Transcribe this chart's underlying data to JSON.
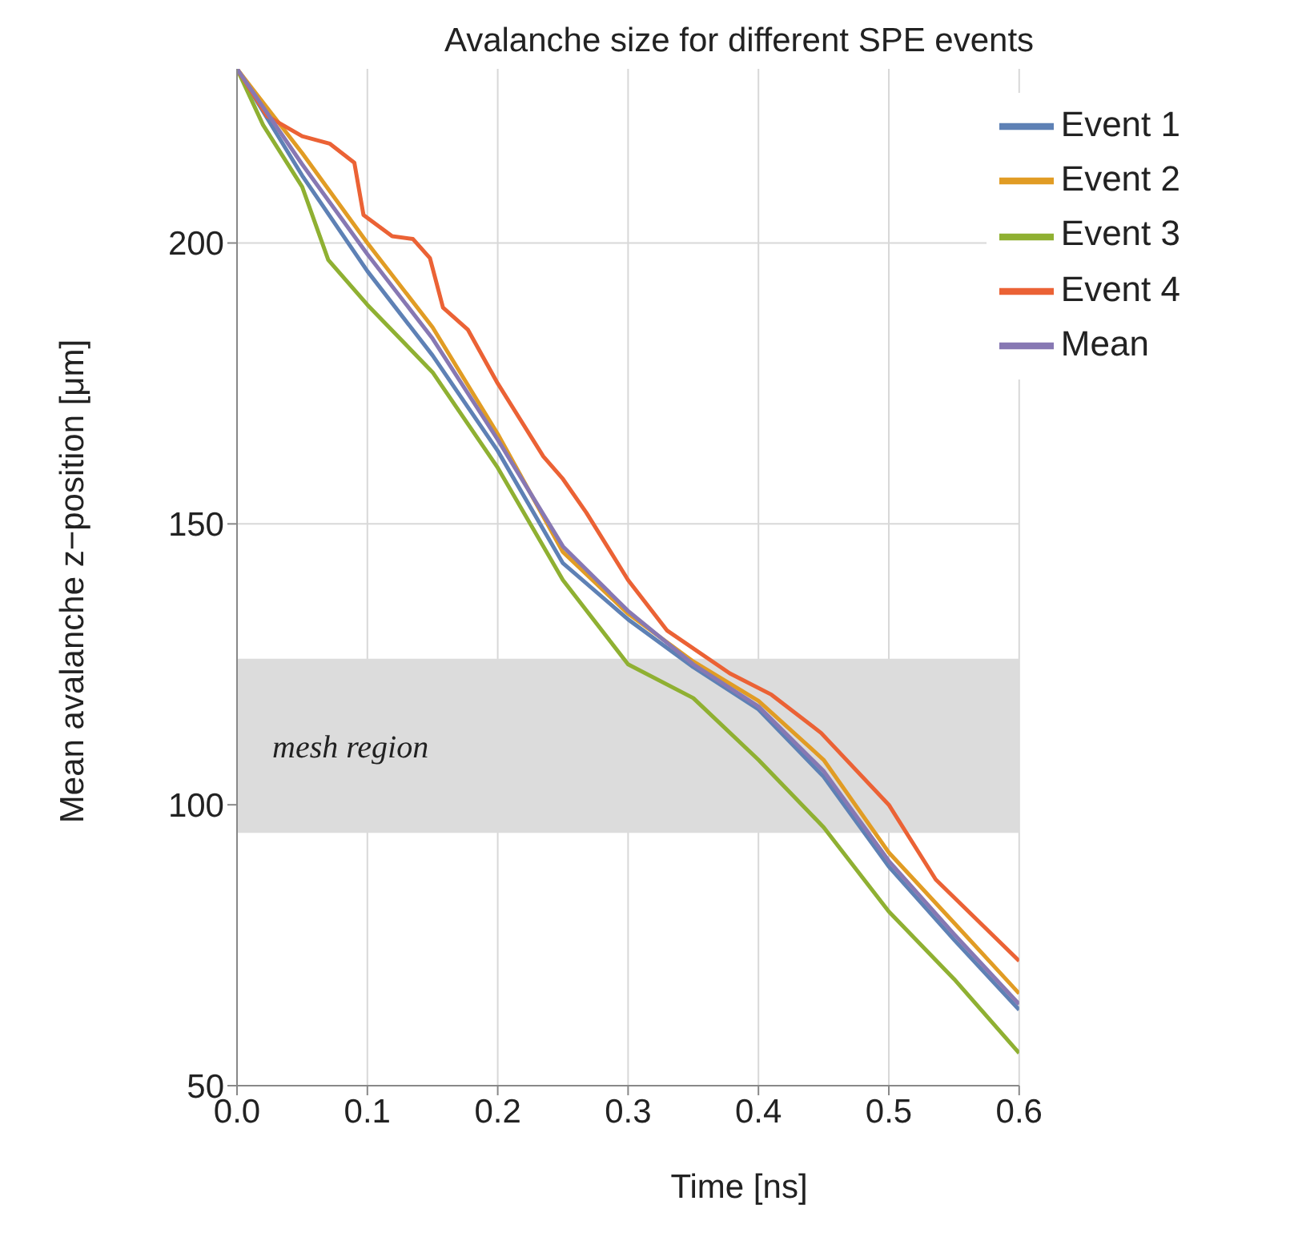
{
  "chart_data": {
    "type": "line",
    "title": "Avalanche size for different SPE events",
    "xlabel": "Time [ns]",
    "ylabel": "Mean avalanche z−position [μm]",
    "xlim": [
      0,
      0.6
    ],
    "xticks": [
      {
        "value": 0,
        "label": "0.0"
      },
      0.1,
      0.2,
      0.3,
      0.4,
      0.5,
      0.6
    ],
    "ylim": [
      50,
      231
    ],
    "yticks": [
      50,
      100,
      150,
      200
    ],
    "grid": true,
    "legend": "top right",
    "bands": [
      {
        "axis": "y",
        "from": 95,
        "to": 126,
        "label": "mesh region",
        "color": "#dcdcdc"
      }
    ],
    "series": [
      {
        "name": "Event 1",
        "color": "#5e81b5",
        "x": [
          0,
          0.05,
          0.1,
          0.15,
          0.2,
          0.25,
          0.3,
          0.35,
          0.4,
          0.45,
          0.5,
          0.55,
          0.6
        ],
        "values": [
          231,
          212,
          195,
          180,
          163,
          143,
          133,
          124.5,
          117,
          105,
          89,
          76,
          63.5
        ]
      },
      {
        "name": "Event 2",
        "color": "#e19c24",
        "x": [
          0,
          0.05,
          0.1,
          0.15,
          0.2,
          0.25,
          0.3,
          0.35,
          0.4,
          0.45,
          0.5,
          0.55,
          0.6
        ],
        "values": [
          231,
          216,
          200,
          185,
          166,
          145,
          134,
          125.5,
          118.5,
          108,
          91.5,
          79,
          66.4
        ]
      },
      {
        "name": "Event 3",
        "color": "#8fb032",
        "x": [
          0,
          0.02,
          0.05,
          0.07,
          0.1,
          0.15,
          0.2,
          0.25,
          0.3,
          0.35,
          0.4,
          0.45,
          0.5,
          0.55,
          0.6
        ],
        "values": [
          231,
          221,
          210,
          197,
          189,
          177,
          160,
          140,
          125,
          119,
          108,
          96,
          81,
          69,
          55.8
        ]
      },
      {
        "name": "Event 4",
        "color": "#eb6235",
        "x": [
          0,
          0.023,
          0.05,
          0.071,
          0.09,
          0.097,
          0.119,
          0.135,
          0.148,
          0.158,
          0.177,
          0.2,
          0.235,
          0.25,
          0.268,
          0.3,
          0.33,
          0.378,
          0.41,
          0.448,
          0.5,
          0.536,
          0.6
        ],
        "values": [
          231,
          222.6,
          219,
          217.7,
          214.3,
          205,
          201.2,
          200.7,
          197.3,
          188.5,
          184.6,
          175,
          162,
          158,
          152,
          140,
          131,
          123.4,
          119.6,
          112.8,
          100,
          86.7,
          72.2
        ]
      },
      {
        "name": "Mean",
        "color": "#8778b3",
        "x": [
          0,
          0.05,
          0.1,
          0.15,
          0.2,
          0.25,
          0.3,
          0.35,
          0.4,
          0.45,
          0.5,
          0.55,
          0.6
        ],
        "values": [
          231,
          214,
          198,
          183,
          165,
          146,
          134.5,
          125,
          117.5,
          106,
          90,
          77,
          64.5
        ]
      }
    ]
  }
}
